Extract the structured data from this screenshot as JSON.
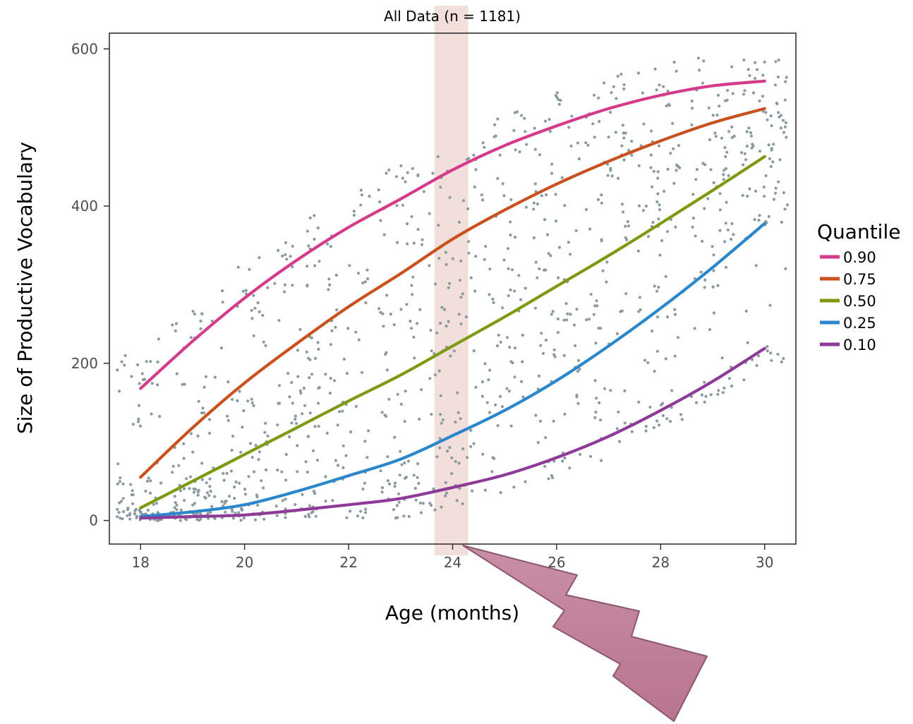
{
  "chart_data": {
    "type": "scatter",
    "title": "All Data (n = 1181)",
    "xlabel": "Age (months)",
    "ylabel": "Size of Productive Vocabulary",
    "xlim": [
      17.4,
      30.6
    ],
    "ylim": [
      -30,
      620
    ],
    "xticks": [
      18,
      20,
      22,
      24,
      26,
      28,
      30
    ],
    "yticks": [
      0,
      200,
      400,
      600
    ],
    "grid": false,
    "legend": {
      "title": "Quantile",
      "position": "right"
    },
    "highlight": {
      "x_range": [
        23.65,
        24.3
      ],
      "color": "#e8c4bf"
    },
    "annotation": {
      "type": "lightning-arrow",
      "color": "#b8748f",
      "points_to": 24.2
    },
    "point_color": "#8a9a9e",
    "n_points": 1181,
    "series": [
      {
        "name": "0.90",
        "color": "#d63a8a",
        "x": [
          18,
          19,
          20,
          21,
          22,
          23,
          24,
          25,
          26,
          27,
          28,
          29,
          30
        ],
        "y": [
          168,
          228,
          283,
          331,
          373,
          409,
          446,
          477,
          502,
          524,
          541,
          553,
          559
        ]
      },
      {
        "name": "0.75",
        "color": "#c8511d",
        "x": [
          18,
          19,
          20,
          21,
          22,
          23,
          24,
          25,
          26,
          27,
          28,
          29,
          30
        ],
        "y": [
          55,
          118,
          175,
          225,
          272,
          314,
          358,
          395,
          428,
          457,
          483,
          506,
          524
        ]
      },
      {
        "name": "0.50",
        "color": "#7d9a12",
        "x": [
          18,
          19,
          20,
          21,
          22,
          23,
          24,
          25,
          26,
          27,
          28,
          29,
          30
        ],
        "y": [
          16,
          50,
          84,
          118,
          152,
          185,
          222,
          259,
          298,
          337,
          378,
          420,
          463
        ]
      },
      {
        "name": "0.25",
        "color": "#2b87cc",
        "x": [
          18,
          19,
          20,
          21,
          22,
          23,
          24,
          25,
          26,
          27,
          28,
          29,
          30
        ],
        "y": [
          5,
          11,
          20,
          37,
          57,
          78,
          108,
          140,
          178,
          222,
          270,
          322,
          378
        ]
      },
      {
        "name": "0.10",
        "color": "#8e3a99",
        "x": [
          18,
          19,
          20,
          21,
          22,
          23,
          24,
          25,
          26,
          27,
          28,
          29,
          30
        ],
        "y": [
          3,
          5,
          7,
          13,
          20,
          28,
          42,
          58,
          80,
          107,
          140,
          177,
          219
        ]
      }
    ]
  }
}
